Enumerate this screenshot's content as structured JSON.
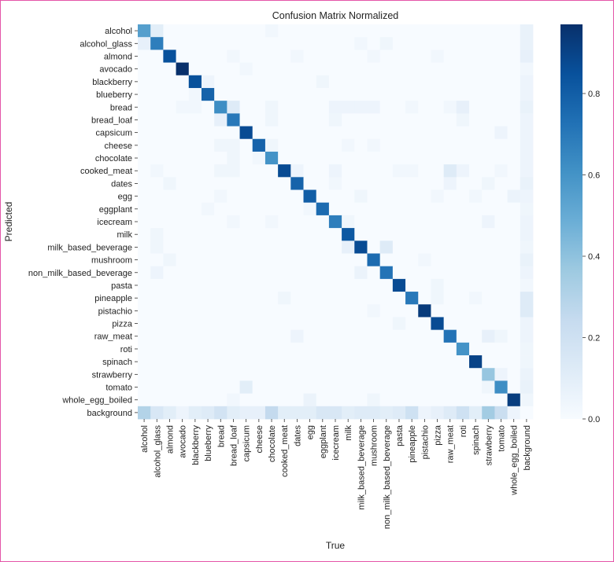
{
  "chart_data": {
    "type": "heatmap",
    "title": "Confusion Matrix Normalized",
    "xlabel": "True",
    "ylabel": "Predicted",
    "labels": [
      "alcohol",
      "alcohol_glass",
      "almond",
      "avocado",
      "blackberry",
      "blueberry",
      "bread",
      "bread_loaf",
      "capsicum",
      "cheese",
      "chocolate",
      "cooked_meat",
      "dates",
      "egg",
      "eggplant",
      "icecream",
      "milk",
      "milk_based_beverage",
      "mushroom",
      "non_milk_based_beverage",
      "pasta",
      "pineapple",
      "pistachio",
      "pizza",
      "raw_meat",
      "roti",
      "spinach",
      "strawberry",
      "tomato",
      "whole_egg_boiled",
      "background"
    ],
    "colormap": "Blues",
    "colormap_stops": [
      "#f7fbff",
      "#deebf7",
      "#c6dbef",
      "#9ecae1",
      "#6baed6",
      "#4292c6",
      "#2171b5",
      "#08519c",
      "#08306b"
    ],
    "vmin": 0.0,
    "vmax": 0.97,
    "colorbar_ticks": [
      0.0,
      0.2,
      0.4,
      0.6,
      0.8
    ],
    "colorbar_tick_labels": [
      "0.0",
      "0.2",
      "0.4",
      "0.6",
      "0.8"
    ],
    "cells_note": "rows = predicted, columns = true; unlisted cells are 0",
    "cells": {
      "alcohol": {
        "alcohol": 0.55,
        "alcohol_glass": 0.1,
        "chocolate": 0.03,
        "background": 0.07
      },
      "alcohol_glass": {
        "alcohol": 0.08,
        "alcohol_glass": 0.68,
        "milk_based_beverage": 0.03,
        "non_milk_based_beverage": 0.04,
        "background": 0.07
      },
      "almond": {
        "almond": 0.85,
        "bread_loaf": 0.03,
        "dates": 0.03,
        "mushroom": 0.03,
        "pizza": 0.03,
        "background": 0.08
      },
      "avocado": {
        "avocado": 0.97,
        "capsicum": 0.03,
        "background": 0.03
      },
      "blackberry": {
        "blackberry": 0.85,
        "blueberry": 0.05,
        "eggplant": 0.04,
        "background": 0.05
      },
      "blueberry": {
        "blackberry": 0.03,
        "blueberry": 0.78,
        "background": 0.05
      },
      "bread": {
        "avocado": 0.03,
        "blackberry": 0.03,
        "bread": 0.62,
        "bread_loaf": 0.12,
        "chocolate": 0.04,
        "icecream": 0.05,
        "milk": 0.05,
        "milk_based_beverage": 0.05,
        "mushroom": 0.05,
        "pineapple": 0.03,
        "raw_meat": 0.03,
        "roti": 0.08,
        "background": 0.07
      },
      "bread_loaf": {
        "bread": 0.08,
        "bread_loaf": 0.7,
        "chocolate": 0.04,
        "icecream": 0.04,
        "roti": 0.04,
        "background": 0.05
      },
      "capsicum": {
        "capsicum": 0.87,
        "tomato": 0.05,
        "background": 0.05
      },
      "cheese": {
        "bread": 0.04,
        "bread_loaf": 0.04,
        "cheese": 0.78,
        "chocolate": 0.04,
        "milk": 0.03,
        "mushroom": 0.03,
        "background": 0.05
      },
      "chocolate": {
        "bread_loaf": 0.04,
        "cheese": 0.03,
        "chocolate": 0.6,
        "background": 0.05
      },
      "cooked_meat": {
        "alcohol_glass": 0.03,
        "bread": 0.04,
        "bread_loaf": 0.04,
        "cooked_meat": 0.87,
        "dates": 0.05,
        "icecream": 0.05,
        "pasta": 0.03,
        "pineapple": 0.03,
        "raw_meat": 0.12,
        "roti": 0.05,
        "tomato": 0.03,
        "background": 0.05
      },
      "dates": {
        "almond": 0.04,
        "dates": 0.78,
        "icecream": 0.03,
        "raw_meat": 0.05,
        "strawberry": 0.04,
        "background": 0.07
      },
      "egg": {
        "bread": 0.03,
        "egg": 0.8,
        "milk_based_beverage": 0.04,
        "pizza": 0.03,
        "spinach": 0.03,
        "whole_egg_boiled": 0.06,
        "background": 0.05
      },
      "eggplant": {
        "blueberry": 0.03,
        "egg": 0.03,
        "eggplant": 0.75,
        "background": 0.04
      },
      "icecream": {
        "bread_loaf": 0.03,
        "chocolate": 0.03,
        "icecream": 0.68,
        "milk": 0.04,
        "strawberry": 0.05,
        "background": 0.05
      },
      "milk": {
        "alcohol_glass": 0.04,
        "milk": 0.82,
        "background": 0.05
      },
      "milk_based_beverage": {
        "alcohol_glass": 0.04,
        "milk": 0.08,
        "milk_based_beverage": 0.87,
        "non_milk_based_beverage": 0.12,
        "background": 0.04
      },
      "mushroom": {
        "almond": 0.04,
        "mushroom": 0.75,
        "pistachio": 0.03,
        "background": 0.07
      },
      "non_milk_based_beverage": {
        "alcohol_glass": 0.05,
        "milk_based_beverage": 0.06,
        "non_milk_based_beverage": 0.72,
        "background": 0.05
      },
      "pasta": {
        "pasta": 0.87,
        "pizza": 0.04,
        "background": 0.03
      },
      "pineapple": {
        "cooked_meat": 0.04,
        "pineapple": 0.7,
        "pizza": 0.04,
        "spinach": 0.03,
        "background": 0.12
      },
      "pistachio": {
        "mushroom": 0.03,
        "pistachio": 0.93,
        "background": 0.12
      },
      "pizza": {
        "pasta": 0.04,
        "pizza": 0.87,
        "background": 0.05
      },
      "raw_meat": {
        "dates": 0.05,
        "raw_meat": 0.72,
        "strawberry": 0.08,
        "tomato": 0.04,
        "background": 0.05
      },
      "roti": {
        "roti": 0.6,
        "background": 0.04
      },
      "spinach": {
        "spinach": 0.9,
        "background": 0.04
      },
      "strawberry": {
        "strawberry": 0.38,
        "tomato": 0.05,
        "background": 0.06
      },
      "tomato": {
        "capsicum": 0.1,
        "strawberry": 0.04,
        "tomato": 0.62,
        "background": 0.07
      },
      "whole_egg_boiled": {
        "bread_loaf": 0.03,
        "egg": 0.06,
        "mushroom": 0.04,
        "whole_egg_boiled": 0.92,
        "background": 0.04
      },
      "background": {
        "alcohol": 0.3,
        "alcohol_glass": 0.15,
        "almond": 0.1,
        "avocado": 0.05,
        "blackberry": 0.1,
        "blueberry": 0.12,
        "bread": 0.18,
        "bread_loaf": 0.1,
        "capsicum": 0.08,
        "cheese": 0.08,
        "chocolate": 0.25,
        "cooked_meat": 0.1,
        "dates": 0.1,
        "egg": 0.1,
        "eggplant": 0.15,
        "icecream": 0.15,
        "milk": 0.1,
        "milk_based_beverage": 0.12,
        "mushroom": 0.12,
        "non_milk_based_beverage": 0.1,
        "pasta": 0.12,
        "pineapple": 0.2,
        "pistachio": 0.05,
        "pizza": 0.08,
        "raw_meat": 0.12,
        "roti": 0.2,
        "spinach": 0.1,
        "strawberry": 0.35,
        "tomato": 0.22,
        "whole_egg_boiled": 0.05,
        "background": 0.0
      }
    }
  }
}
